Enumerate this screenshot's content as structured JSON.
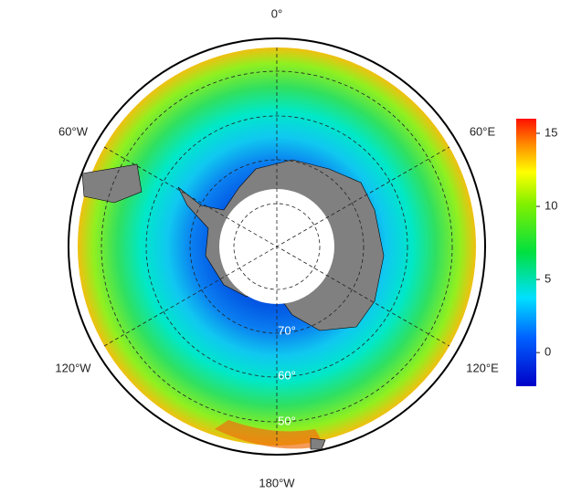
{
  "map": {
    "lon_labels": [
      "0°",
      "60°E",
      "120°E",
      "180°W",
      "120°W",
      "60°W"
    ],
    "lat_labels": [
      "70°",
      "60°",
      "50°"
    ],
    "colorbar": {
      "lim": [
        -2.3,
        16
      ],
      "ticks": [
        0,
        5,
        10,
        15
      ]
    }
  }
}
